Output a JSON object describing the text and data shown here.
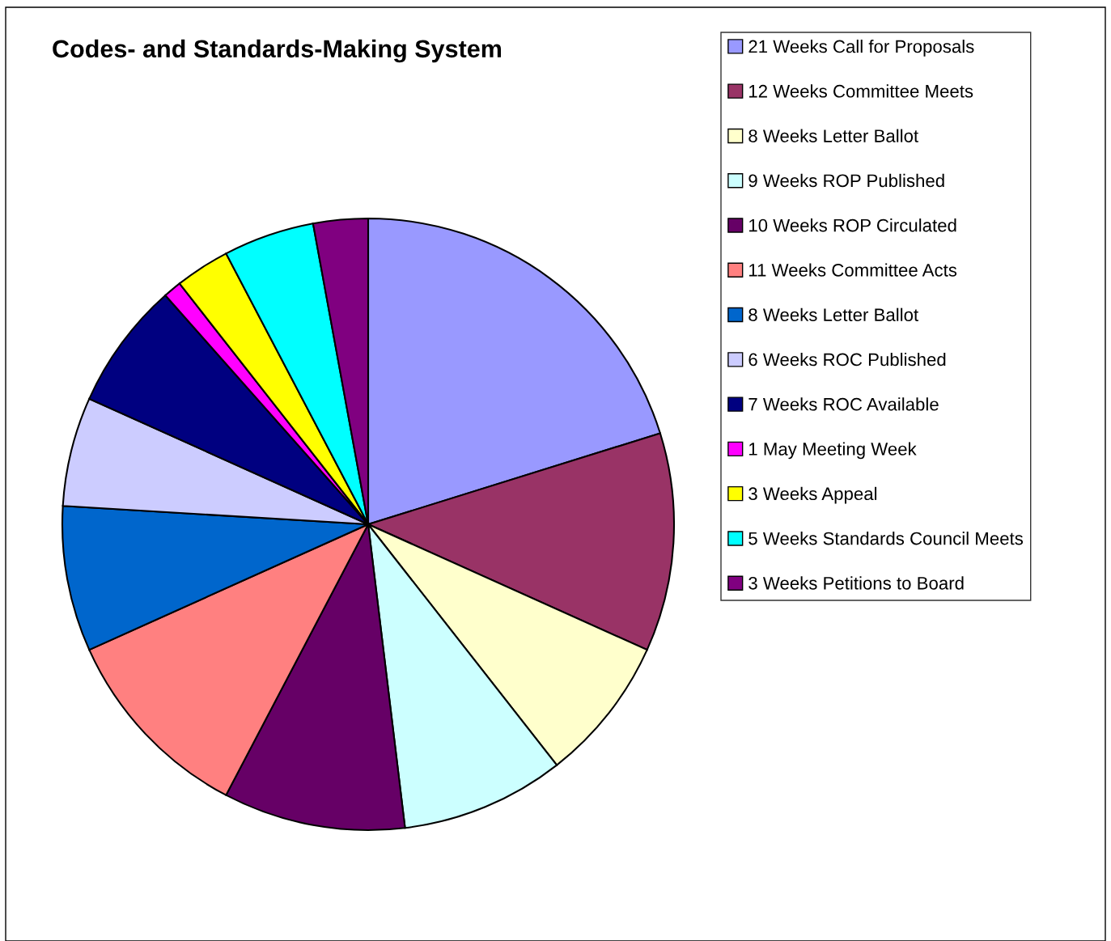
{
  "chart_data": {
    "type": "pie",
    "title": "Codes- and Standards-Making System",
    "categories": [
      "21 Weeks Call for Proposals",
      "12 Weeks Committee Meets",
      "8 Weeks Letter Ballot",
      "9 Weeks ROP Published",
      "10 Weeks ROP Circulated",
      "11 Weeks Committee Acts",
      "8 Weeks Letter Ballot",
      "6 Weeks ROC Published",
      "7 Weeks ROC Available",
      "1 May Meeting Week",
      "3 Weeks Appeal",
      "5 Weeks Standards Council Meets",
      "3 Weeks Petitions to Board"
    ],
    "values": [
      21,
      12,
      8,
      9,
      10,
      11,
      8,
      6,
      7,
      1,
      3,
      5,
      3
    ],
    "colors": [
      "#9999ff",
      "#993366",
      "#ffffcc",
      "#ccffff",
      "#660066",
      "#ff8080",
      "#0066cc",
      "#ccccff",
      "#000080",
      "#ff00ff",
      "#ffff00",
      "#00ffff",
      "#800080"
    ],
    "legend": "right"
  }
}
